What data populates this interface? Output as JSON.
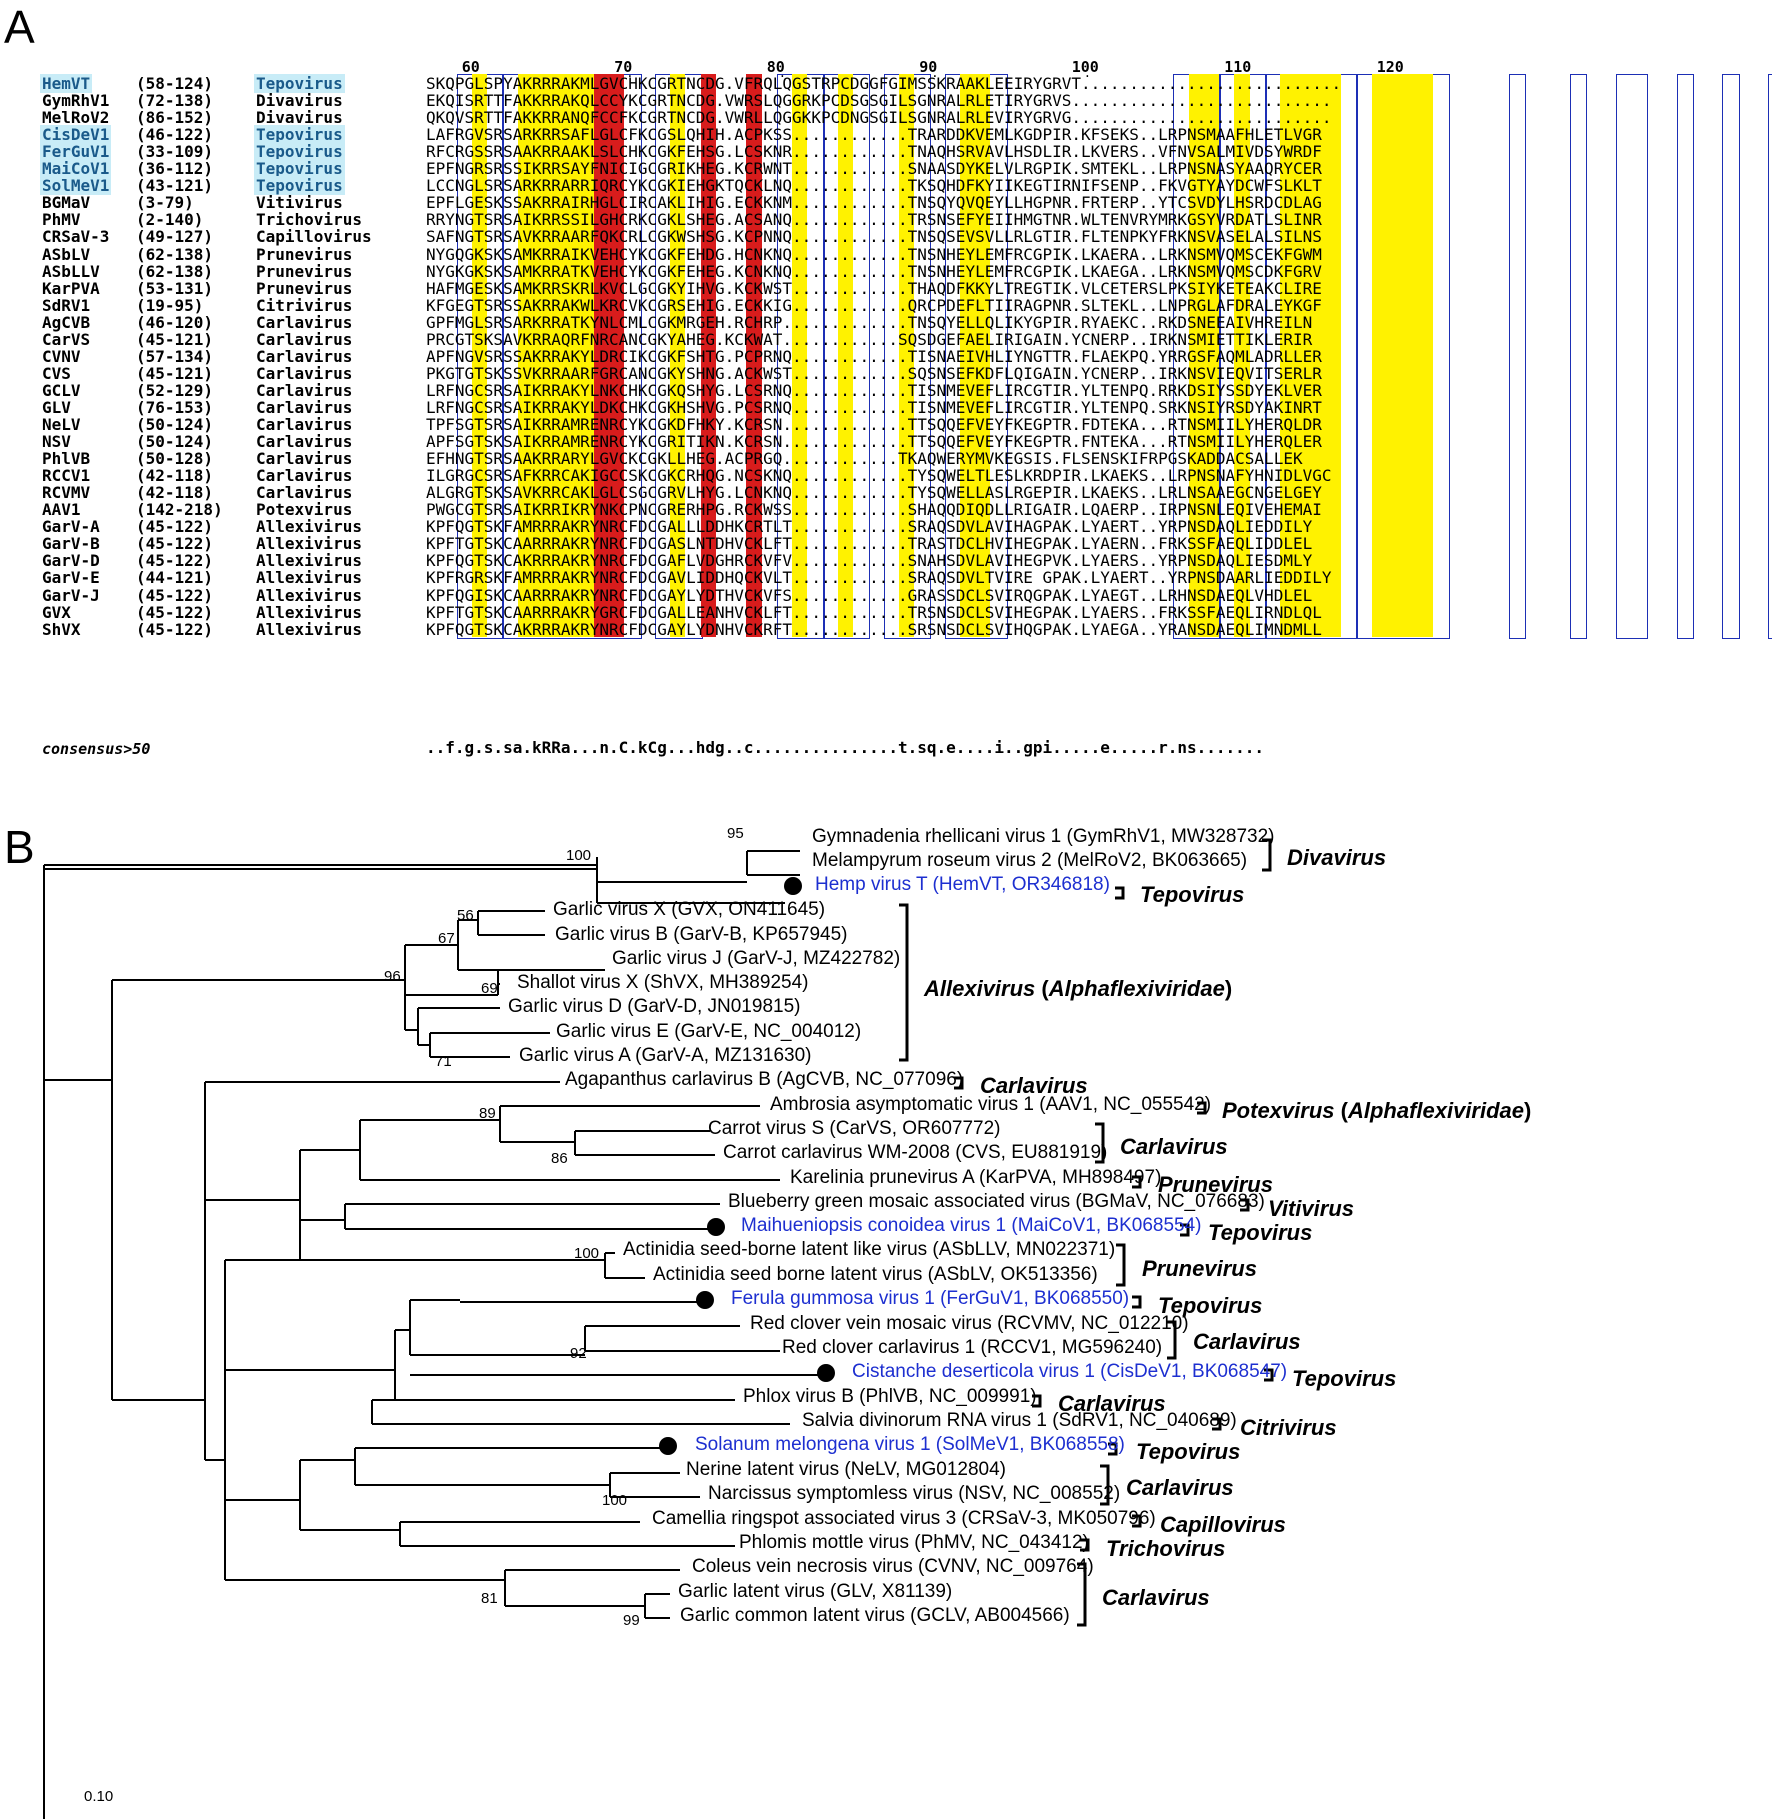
{
  "panels": {
    "a": "A",
    "b": "B"
  },
  "ruler": [
    {
      "n": "60"
    },
    {
      "n": "70"
    },
    {
      "n": "80"
    },
    {
      "n": "90"
    },
    {
      "n": "100"
    },
    {
      "n": "110"
    },
    {
      "n": "120"
    }
  ],
  "alignment": {
    "rows": [
      {
        "name": "HemVT",
        "range": "(58-124)",
        "genus": "Tepovirus",
        "tepo": true,
        "seq": "SKQPGLSPYAKRRRAKMLGVCHKCGRTNCDG.VFRQLQGSTRPCDGGFGIMSSKRAAKLEEIRYGRVT..........................."
      },
      {
        "name": "GymRhV1",
        "range": "(72-138)",
        "genus": "Divavirus",
        "tepo": false,
        "seq": "EKQISRTTFAKKRRAKQLCCYKCGRTNCDG.VWRSLQGGRKPCDSGSGILSGNRALRLETIRYGRVS..........................."
      },
      {
        "name": "MelRoV2",
        "range": "(86-152)",
        "genus": "Divavirus",
        "tepo": false,
        "seq": "QKQVSRTTFAKKRRANQFCCFKCGRTNCDG.VWRLLQGGKKPCDNGSGILSGNRALRLEVIRYGRVG..........................."
      },
      {
        "name": "CisDeV1",
        "range": "(46-122)",
        "genus": "Tepovirus",
        "tepo": true,
        "seq": "LAFRGVSRSARKRRSAFLGLCFKCGSLQHIH.ACPKSS............TRARDDKVEMLKGDPIR.KFSEKS..LRPNSMAAFHLETLVGR"
      },
      {
        "name": "FerGuV1",
        "range": "(33-109)",
        "genus": "Tepovirus",
        "tepo": true,
        "seq": "RFCRGSSRSAAKRRAAKLSLCHKCGKFEHSG.LCSKNR............TNAQHSRVAVLHSDLIR.LKVERS..VFNVSALMIVDSYWRDF"
      },
      {
        "name": "MaiCoV1",
        "range": "(36-112)",
        "genus": "Tepovirus",
        "tepo": true,
        "seq": "EPFNGRSRSSIKRRSAYFNICIGCGRIKHEG.KCRWNT............SNAASDYKELVLRGPIK.SMTEKL..LRPNSNASYAAQRYCER"
      },
      {
        "name": "SolMeV1",
        "range": "(43-121)",
        "genus": "Tepovirus",
        "tepo": true,
        "seq": "LCCNGLSRSARKRRARRIQRCYKCGKIEHGKTQCKLNQ............TKSQHDFKYIIKEGTIRNIFSENP..FKVGTYAYDCWFSLKLT"
      },
      {
        "name": "BGMaV",
        "range": "(3-79)",
        "genus": "Vitivirus",
        "tepo": false,
        "seq": "EPFLGESKSSAKRRAIRHGLCIRCAKLIHIG.ECKKNM............TNSQYQVQEYLLHGPNR.FRTERP..YTCSVDYLHSRDCDLAG"
      },
      {
        "name": "PhMV",
        "range": "(2-140)",
        "genus": "Trichovirus",
        "tepo": false,
        "seq": "RRYNGTSRSAIKRRSSILGHCRKCGKLSHEG.ACSANQ............TRSNSEFYEIIHMGTNR.WLTENVRYMRKGSYVRDATLSLINR"
      },
      {
        "name": "CRSaV-3",
        "range": "(49-127)",
        "genus": "Capillovirus",
        "tepo": false,
        "seq": "SAFNGTSRSAVKRRAARFQKCRLCGKWSHSG.KCPNNQ............TNSQSEVSVLLRLGTIR.FLTENPKYFRKNSVASELALSILNS"
      },
      {
        "name": "ASbLV",
        "range": "(62-138)",
        "genus": "Prunevirus",
        "tepo": false,
        "seq": "NYGQGKSKSAMKRRAIKVEHCYKCGKFEHDG.HCNKNQ............TNSNHEYLEMFRCGPIK.LKAERA..LRKNSMVQMSCEKFGWM"
      },
      {
        "name": "ASbLLV",
        "range": "(62-138)",
        "genus": "Prunevirus",
        "tepo": false,
        "seq": "NYGKGKSKSAMKRRATKVEHCYKCGKFEHEG.KCNKNQ............TNSNHEYLEMFRCGPIK.LKAEGA..LRKNSMVQMSCDKFGRV"
      },
      {
        "name": "KarPVA",
        "range": "(53-131)",
        "genus": "Prunevirus",
        "tepo": false,
        "seq": "HAFMGESKSAMKRRSKRLKVCLGCGKYIHVG.KCKWST............THAQDFKKYLTREGTIK.VLCETERSLPKSIYKETEAKCLIRE"
      },
      {
        "name": "SdRV1",
        "range": "(19-95)",
        "genus": "Citrivirus",
        "tepo": false,
        "seq": "KFGEGTSRSSAKRRAKWLKRCVKCGRSEHIG.ECKKIG............QRCPDEFLTIIRAGPNR.SLTEKL..LNPRGLAFDRALEYKGF"
      },
      {
        "name": "AgCVB",
        "range": "(46-120)",
        "genus": "Carlavirus",
        "tepo": false,
        "seq": "GPFMGLSRSARKRRATKYNLCMLCGKMRGEH.RCHRP.............TNSQYELLQLIKYGPIR.RYAEKC..RKDSNEEAIVHREILN"
      },
      {
        "name": "CarVS",
        "range": "(45-121)",
        "genus": "Carlavirus",
        "tepo": false,
        "seq": "PRCGTSKSAVKRRAQRFNRCANCGKYAHEG.KCKWAT............SQSDGEFAELIRIGAIN.YCNERP..IRKNSMIETTIKLERIR"
      },
      {
        "name": "CVNV",
        "range": "(57-134)",
        "genus": "Carlavirus",
        "tepo": false,
        "seq": "APFNGVSRSSAKRRAKYLDRCIKCGKFSHTG.PCPRNQ............TISNAEIVHLIYNGTTR.FLAEKPQ.YRRGSFAQMLADRLLER"
      },
      {
        "name": "CVS",
        "range": "(45-121)",
        "genus": "Carlavirus",
        "tepo": false,
        "seq": "PKGTGTSKSSVKRRAARFGRCANCGKYSHNG.ACKWST............SQSNSEFKDFLQIGAIN.YCNERP..IRKNSVIEQVITSERLR"
      },
      {
        "name": "GCLV",
        "range": "(52-129)",
        "genus": "Carlavirus",
        "tepo": false,
        "seq": "LRFNGCSRSAIKRRAKYLNKCHKCGKQSHYG.LCSRNQ............TISNMEVEFLIRCGTIR.YLTENPQ.RRKDSIYSSDYEKLVER"
      },
      {
        "name": "GLV",
        "range": "(76-153)",
        "genus": "Carlavirus",
        "tepo": false,
        "seq": "LRFNGCSRSAIKRRAKYLDKCHKCGKHSHVG.PCSRNQ............TISNMEVEFLIRCGTIR.YLTENPQ.SRKNSIYRSDYAKINRT"
      },
      {
        "name": "NeLV",
        "range": "(50-124)",
        "genus": "Carlavirus",
        "tepo": false,
        "seq": "TPFSGTSRSAIKRRAMRENRCYKCGKDFHKY.KCRSN.............TTSQQEFVEYFKEGPTR.FDTEKA...RTNSMIILYHERQLDR"
      },
      {
        "name": "NSV",
        "range": "(50-124)",
        "genus": "Carlavirus",
        "tepo": false,
        "seq": "APFSGTSKSAIKRRAMRENRCYKCGRITIKN.KCRSN.............TTSQQEFVEYFKEGPTR.FNTEKA...RTNSMIILYHERQLER"
      },
      {
        "name": "PhlVB",
        "range": "(50-128)",
        "genus": "Carlavirus",
        "tepo": false,
        "seq": "EFHNGTSRSAAKRRARYLGVCKCGKLLHEG.ACPRGQ............TKAQWERYMVKEGSIS.FLSENSKIFRPGSKADDACSALLEK"
      },
      {
        "name": "RCCV1",
        "range": "(42-118)",
        "genus": "Carlavirus",
        "tepo": false,
        "seq": "ILGRGCSRSAFKRRCAKIGCCSKCGKCRHQG.NCSKNQ............TYSQWELTLESLKRDPIR.LKAEKS..LRPNSNAFYHNIDLVGC"
      },
      {
        "name": "RCVMV",
        "range": "(42-118)",
        "genus": "Carlavirus",
        "tepo": false,
        "seq": "ALGRGTSKSAVKRRCAKLGLCSGCGRVLHYG.LCNKNQ............TYSQWELLASLRGEPIR.LKAEKS..LRLNSAAEGCNGELGEY"
      },
      {
        "name": "AAV1",
        "range": "(142-218)",
        "genus": "Potexvirus",
        "tepo": false,
        "seq": "PWGCGTSRSAIKRRIKRYNKCPNCGRERHPG.RCKWSS............SHAQQDIQDLLRIGAIR.LQAERP..IRPNSNLEQIVEHEMAI"
      },
      {
        "name": "GarV-A",
        "range": "(45-122)",
        "genus": "Allexivirus",
        "tepo": false,
        "seq": "KPFQGTSKFAMRRRAKRYNRCFDCGALLLDDHKCRTLT............SRAQSDVLAVIHAGPAK.LYAERT..YRPNSDAQLIEDDILY"
      },
      {
        "name": "GarV-B",
        "range": "(45-122)",
        "genus": "Allexivirus",
        "tepo": false,
        "seq": "KPFTGTSKCAARRRAKRYNRCFDCGASLNTDHVCKLFT............TRASTDCLHVIHEGPAK.LYAERN..FRKSSFAEQLIDDLEL"
      },
      {
        "name": "GarV-D",
        "range": "(45-122)",
        "genus": "Allexivirus",
        "tepo": false,
        "seq": "KPFQGTSKCAKRRRAKRYNRCFDCGAFLVDGHRCKVFV............SNAHSDVLAVIHEGPVK.LYAERS..YRPNSDAQLIESDMLY"
      },
      {
        "name": "GarV-E",
        "range": "(44-121)",
        "genus": "Allexivirus",
        "tepo": false,
        "seq": "KPFRGRSKFAMRRRAKRYNRCFDCGAVLIDDHQCKVLT............SRAQSDVLTVIRE GPAK.LYAERT..YRPNSDAARLIEDDILY"
      },
      {
        "name": "GarV-J",
        "range": "(45-122)",
        "genus": "Allexivirus",
        "tepo": false,
        "seq": "KPFQGISKCAARRRAKRYNRCFDCGAYLYDTHVCKVFS............GRASSDCLSVIRQGPAK.LYAEGT..LRHNSDAEQLVHDLEL"
      },
      {
        "name": "GVX",
        "range": "(45-122)",
        "genus": "Allexivirus",
        "tepo": false,
        "seq": "KPFTGTSKCAARRRAKRYGRCFDCGALLEANHVCKLFT............TRSNSDCLSVIHEGPAK.LYAERS..FRKSSFAEQLIRNDLQL"
      },
      {
        "name": "ShVX",
        "range": "(45-122)",
        "genus": "Allexivirus",
        "tepo": false,
        "seq": "KPFQGTSKCAKRRRAKRYNRCFDCGAYLYDNHVCKRFT............SRSNSDCLSVIHQGPAK.LYAEGA..YRANSDAEQLIMNDMLL"
      }
    ],
    "consensus_label": "consensus>50",
    "consensus_seq": "..f.g.s.sa.kRRa...n.C.kCg...hdg..c...............t.sq.e....i..gpi.....e.....r.ns......."
  },
  "tree": {
    "leaves": [
      {
        "label": "Gymnadenia rhellicani virus 1 (GymRhV1, MW328732)",
        "blue": false
      },
      {
        "label": "Melampyrum roseum virus 2 (MelRoV2, BK063665)",
        "blue": false
      },
      {
        "label": "Hemp virus T (HemVT, OR346818)",
        "blue": true
      },
      {
        "label": "Garlic virus X (GVX, ON411645)",
        "blue": false
      },
      {
        "label": "Garlic virus B (GarV-B, KP657945)",
        "blue": false
      },
      {
        "label": "Garlic virus J (GarV-J, MZ422782)",
        "blue": false
      },
      {
        "label": "Shallot virus X (ShVX, MH389254)",
        "blue": false
      },
      {
        "label": "Garlic virus D (GarV-D, JN019815)",
        "blue": false
      },
      {
        "label": "Garlic virus E (GarV-E, NC_004012)",
        "blue": false
      },
      {
        "label": "Garlic virus A (GarV-A, MZ131630)",
        "blue": false
      },
      {
        "label": "Agapanthus carlavirus B (AgCVB, NC_077096)",
        "blue": false
      },
      {
        "label": "Ambrosia asymptomatic virus 1 (AAV1, NC_055542)",
        "blue": false
      },
      {
        "label": "Carrot virus S (CarVS, OR607772)",
        "blue": false
      },
      {
        "label": "Carrot carlavirus WM-2008 (CVS, EU881919)",
        "blue": false
      },
      {
        "label": "Karelinia prunevirus A (KarPVA, MH898497)",
        "blue": false
      },
      {
        "label": "Blueberry green mosaic associated virus (BGMaV, NC_076683)",
        "blue": false
      },
      {
        "label": "Maihueniopsis conoidea virus 1 (MaiCoV1, BK068554)",
        "blue": true
      },
      {
        "label": "Actinidia seed-borne latent like virus (ASbLLV, MN022371)",
        "blue": false
      },
      {
        "label": "Actinidia seed borne latent virus (ASbLV, OK513356)",
        "blue": false
      },
      {
        "label": "Ferula gummosa virus 1 (FerGuV1, BK068550)",
        "blue": true
      },
      {
        "label": "Red clover vein mosaic virus (RCVMV, NC_012210)",
        "blue": false
      },
      {
        "label": "Red clover carlavirus 1 (RCCV1, MG596240)",
        "blue": false
      },
      {
        "label": "Cistanche deserticola virus 1 (CisDeV1, BK068547)",
        "blue": true
      },
      {
        "label": "Phlox virus B (PhlVB, NC_009991)",
        "blue": false
      },
      {
        "label": "Salvia divinorum RNA virus 1 (SdRV1, NC_040689)",
        "blue": false
      },
      {
        "label": "Solanum melongena virus 1 (SolMeV1, BK068558)",
        "blue": true
      },
      {
        "label": "Nerine latent virus (NeLV, MG012804)",
        "blue": false
      },
      {
        "label": "Narcissus symptomless virus (NSV, NC_008552)",
        "blue": false
      },
      {
        "label": "Camellia ringspot associated virus 3 (CRSaV-3, MK050796)",
        "blue": false
      },
      {
        "label": "Phlomis mottle virus (PhMV, NC_043412)",
        "blue": false
      },
      {
        "label": "Coleus vein necrosis virus (CVNV, NC_009764)",
        "blue": false
      },
      {
        "label": "Garlic latent virus (GLV, X81139)",
        "blue": false
      },
      {
        "label": "Garlic common latent virus (GCLV, AB004566)",
        "blue": false
      }
    ],
    "bootstrap": [
      "95",
      "100",
      "56",
      "67",
      "96",
      "69",
      "71",
      "89",
      "86",
      "100",
      "92",
      "100",
      "81",
      "99"
    ],
    "genera": [
      {
        "name": "Divavirus",
        "family": ""
      },
      {
        "name": "Tepovirus",
        "family": ""
      },
      {
        "name": "Allexivirus",
        "family": "Alphaflexiviridae"
      },
      {
        "name": "Carlavirus",
        "family": ""
      },
      {
        "name": "Potexvirus",
        "family": "Alphaflexiviridae"
      },
      {
        "name": "Carlavirus",
        "family": ""
      },
      {
        "name": "Prunevirus",
        "family": ""
      },
      {
        "name": "Vitivirus",
        "family": ""
      },
      {
        "name": "Tepovirus",
        "family": ""
      },
      {
        "name": "Prunevirus",
        "family": ""
      },
      {
        "name": "Tepovirus",
        "family": ""
      },
      {
        "name": "Carlavirus",
        "family": ""
      },
      {
        "name": "Tepovirus",
        "family": ""
      },
      {
        "name": "Carlavirus",
        "family": ""
      },
      {
        "name": "Citrivirus",
        "family": ""
      },
      {
        "name": "Tepovirus",
        "family": ""
      },
      {
        "name": "Carlavirus",
        "family": ""
      },
      {
        "name": "Capillovirus",
        "family": ""
      },
      {
        "name": "Trichovirus",
        "family": ""
      },
      {
        "name": "Carlavirus",
        "family": ""
      }
    ],
    "scale_label": "0.10"
  }
}
